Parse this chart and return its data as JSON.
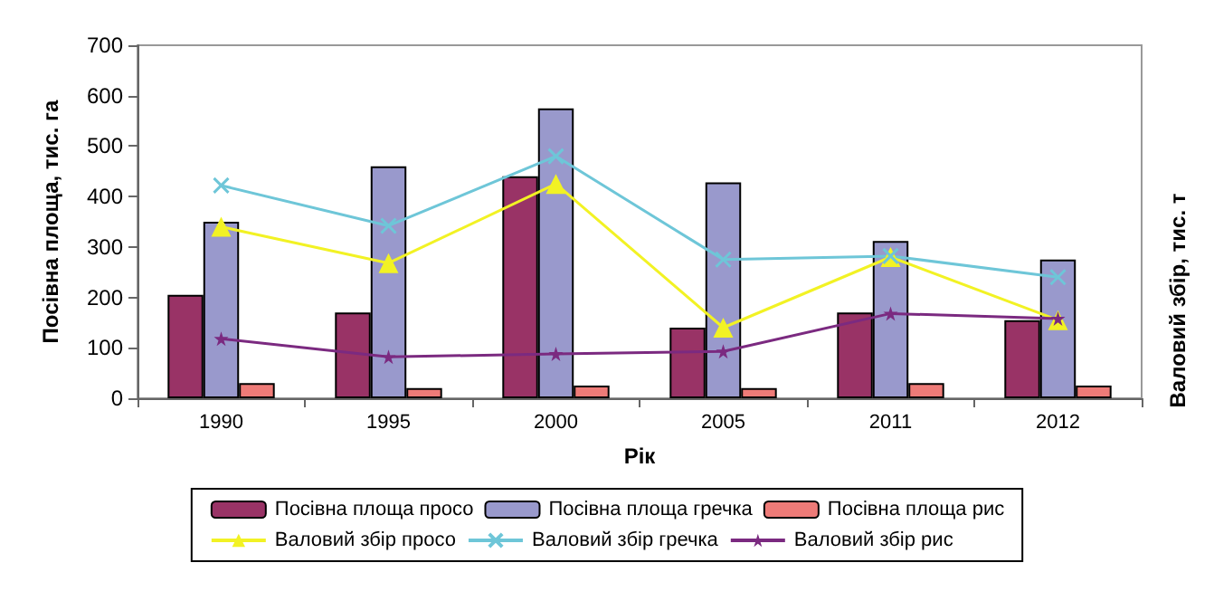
{
  "chart_data": {
    "type": "bar",
    "xlabel": "Рік",
    "ylabel": "Посівна площа, тис. га",
    "y2label": "Валовий збір, тис. т",
    "categories": [
      "1990",
      "1995",
      "2000",
      "2005",
      "2011",
      "2012"
    ],
    "series": [
      {
        "name": "Посівна площа просо",
        "color": "#993366",
        "values": [
          205,
          170,
          440,
          140,
          170,
          155
        ]
      },
      {
        "name": "Посівна площа гречка",
        "color": "#9999cc",
        "values": [
          350,
          460,
          575,
          428,
          312,
          275
        ]
      },
      {
        "name": "Посівна площа рис",
        "color": "#ee7b78",
        "values": [
          30,
          20,
          25,
          20,
          30,
          25
        ]
      },
      {
        "name": "Валовий збір просо",
        "type": "line",
        "marker": "triangle",
        "color": "#f2f224",
        "values": [
          340,
          268,
          425,
          140,
          280,
          155
        ]
      },
      {
        "name": "Валовий збір гречка",
        "type": "line",
        "marker": "cross",
        "color": "#6ec6d8",
        "values": [
          422,
          342,
          480,
          275,
          282,
          240
        ]
      },
      {
        "name": "Валовий збір рис",
        "type": "line",
        "marker": "star",
        "color": "#7b2a80",
        "values": [
          118,
          82,
          88,
          93,
          168,
          158
        ]
      }
    ],
    "ylim": [
      0,
      700
    ],
    "yticks": [
      0,
      100,
      200,
      300,
      400,
      500,
      600,
      700
    ],
    "grid": false,
    "legend": "bottom"
  }
}
